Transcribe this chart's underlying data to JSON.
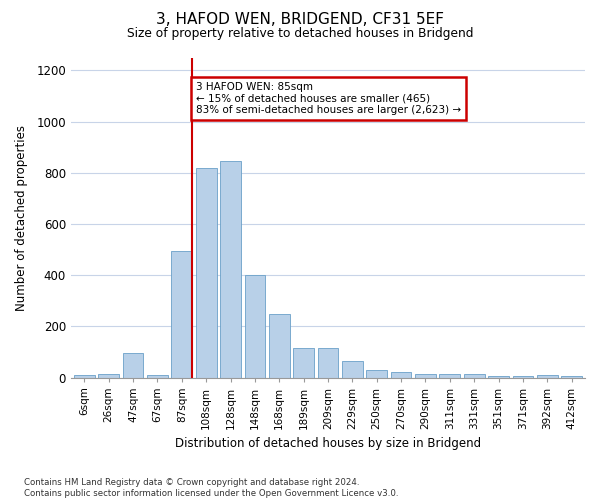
{
  "title": "3, HAFOD WEN, BRIDGEND, CF31 5EF",
  "subtitle": "Size of property relative to detached houses in Bridgend",
  "xlabel": "Distribution of detached houses by size in Bridgend",
  "ylabel": "Number of detached properties",
  "categories": [
    "6sqm",
    "26sqm",
    "47sqm",
    "67sqm",
    "87sqm",
    "108sqm",
    "128sqm",
    "148sqm",
    "168sqm",
    "189sqm",
    "209sqm",
    "229sqm",
    "250sqm",
    "270sqm",
    "290sqm",
    "311sqm",
    "331sqm",
    "351sqm",
    "371sqm",
    "392sqm",
    "412sqm"
  ],
  "values": [
    10,
    12,
    95,
    10,
    495,
    820,
    845,
    400,
    250,
    115,
    115,
    65,
    30,
    20,
    12,
    12,
    12,
    5,
    5,
    10,
    5
  ],
  "bar_color": "#b8d0e8",
  "bar_edge_color": "#6aa0c8",
  "highlight_bar_index": 4,
  "highlight_color": "#cc0000",
  "annotation_text": "3 HAFOD WEN: 85sqm\n← 15% of detached houses are smaller (465)\n83% of semi-detached houses are larger (2,623) →",
  "annotation_box_color": "#cc0000",
  "ylim": [
    0,
    1250
  ],
  "yticks": [
    0,
    200,
    400,
    600,
    800,
    1000,
    1200
  ],
  "footnote": "Contains HM Land Registry data © Crown copyright and database right 2024.\nContains public sector information licensed under the Open Government Licence v3.0.",
  "background_color": "#ffffff",
  "grid_color": "#c8d4e8"
}
